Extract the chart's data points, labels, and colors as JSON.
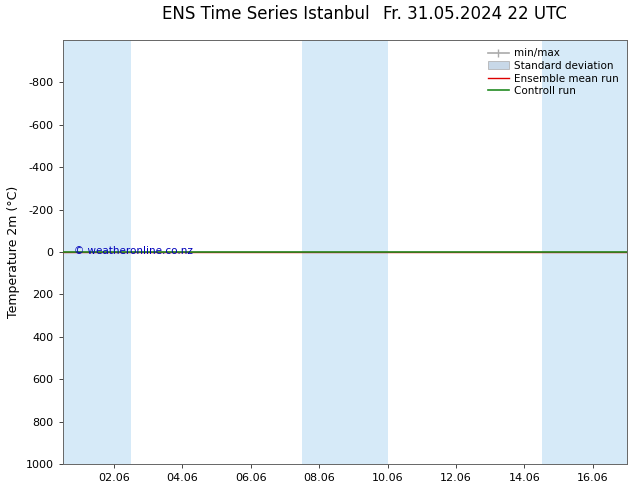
{
  "title": "ENS Time Series Istanbul",
  "title2": "Fr. 31.05.2024 22 UTC",
  "ylabel": "Temperature 2m (°C)",
  "ylim": [
    -1000,
    1000
  ],
  "yticks": [
    -800,
    -600,
    -400,
    -200,
    0,
    200,
    400,
    600,
    800,
    1000
  ],
  "xtick_labels": [
    "02.06",
    "04.06",
    "06.06",
    "08.06",
    "10.06",
    "12.06",
    "14.06",
    "16.06"
  ],
  "xtick_positions": [
    2,
    4,
    6,
    8,
    10,
    12,
    14,
    16
  ],
  "xlim": [
    0.5,
    17
  ],
  "shaded_bands": [
    {
      "x_start": 0.5,
      "x_end": 2.5
    },
    {
      "x_start": 7.5,
      "x_end": 10.0
    },
    {
      "x_start": 14.5,
      "x_end": 17.0
    }
  ],
  "control_run_y": 0,
  "ensemble_mean_y": 0,
  "background_color": "#ffffff",
  "band_color": "#d6eaf8",
  "legend_items": [
    {
      "label": "min/max",
      "color": "#aaaaaa",
      "lw": 1.2
    },
    {
      "label": "Standard deviation",
      "color": "#c8d8e8",
      "lw": 7
    },
    {
      "label": "Ensemble mean run",
      "color": "#dd0000",
      "lw": 1.0
    },
    {
      "label": "Controll run",
      "color": "#228b22",
      "lw": 1.2
    }
  ],
  "watermark": "© weatheronline.co.nz",
  "watermark_color": "#0000bb",
  "spine_color": "#666666",
  "tick_color": "#444444",
  "title_fontsize": 12,
  "axis_label_fontsize": 9,
  "tick_fontsize": 8,
  "legend_fontsize": 7.5
}
